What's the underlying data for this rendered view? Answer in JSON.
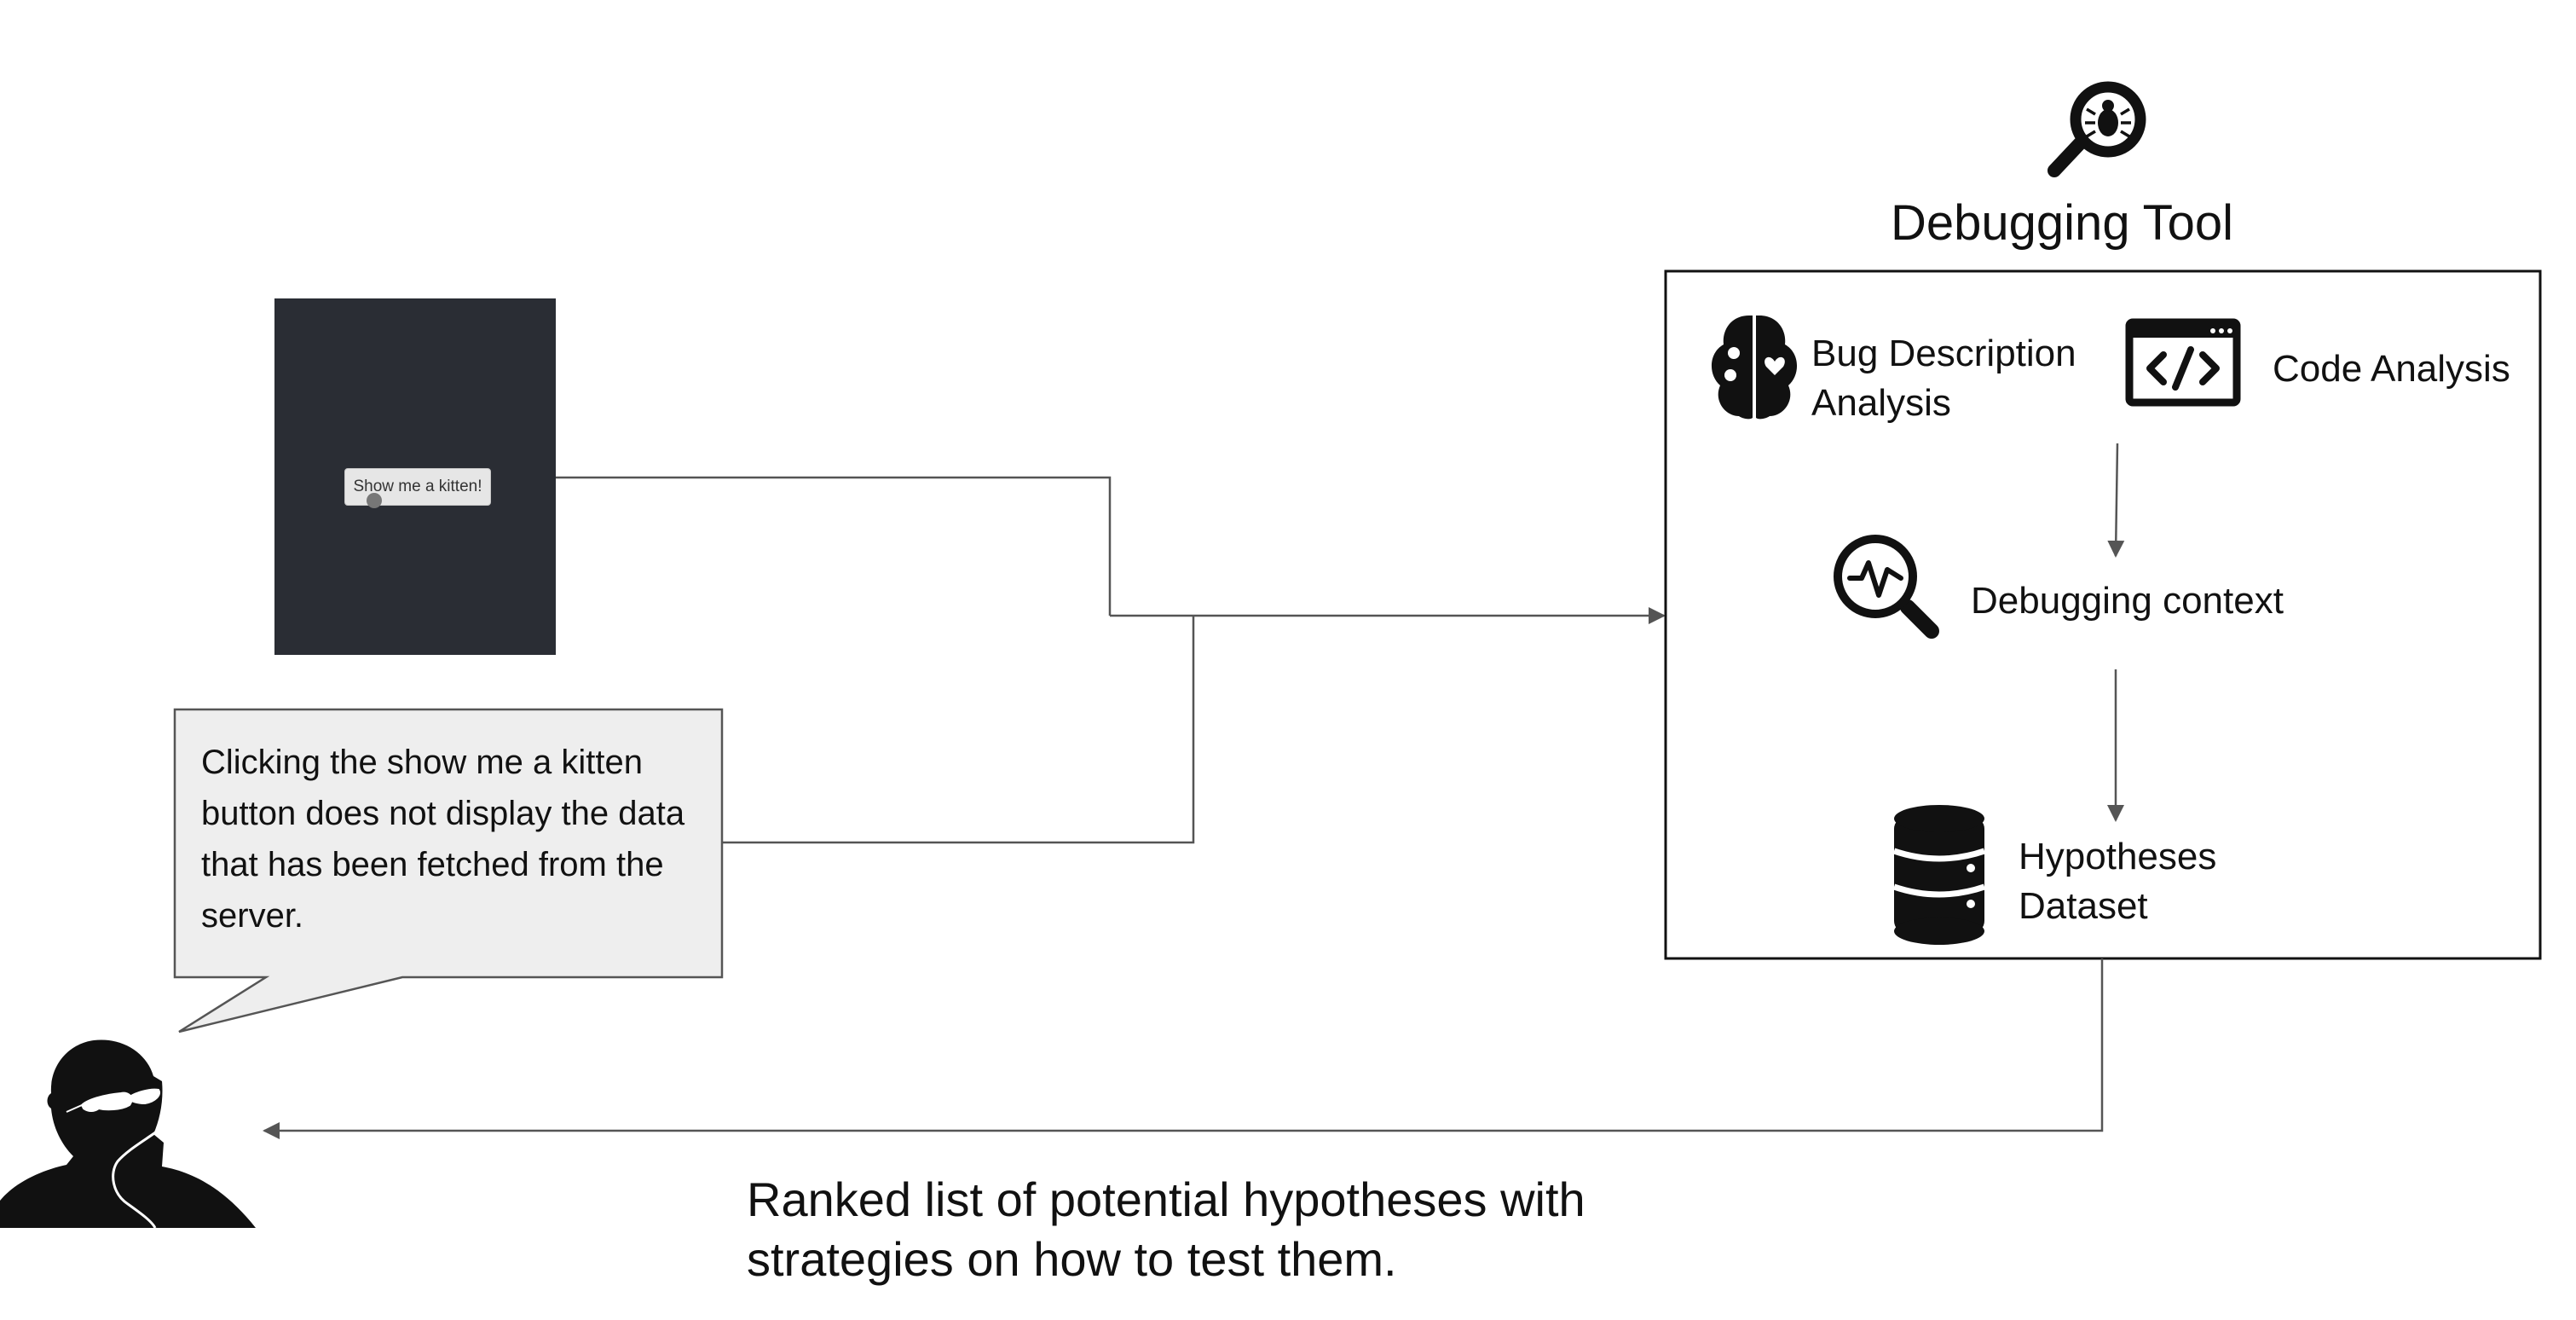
{
  "app_preview": {
    "button_label": "Show me a kitten!"
  },
  "bug_report": {
    "text": "Clicking the show me a kitten button does not display the data that has been fetched from the server."
  },
  "debugging_tool": {
    "title": "Debugging Tool",
    "bug_description_line1": "Bug Description",
    "bug_description_line2": "Analysis",
    "code_analysis": "Code Analysis",
    "debugging_context": "Debugging context",
    "hypotheses_line1": "Hypotheses",
    "hypotheses_line2": "Dataset"
  },
  "result": {
    "line1": "Ranked list of potential hypotheses with",
    "line2": "strategies on how to test them."
  },
  "colors": {
    "panel_dark": "#2a2d34",
    "bubble_fill": "#eeeeee",
    "line": "#555555"
  },
  "icons": {
    "tool": "bug-magnifier-icon",
    "bug_description": "brain-icon",
    "code": "code-window-icon",
    "context": "pulse-magnifier-icon",
    "hypotheses": "database-icon",
    "user": "thinking-person-icon"
  }
}
